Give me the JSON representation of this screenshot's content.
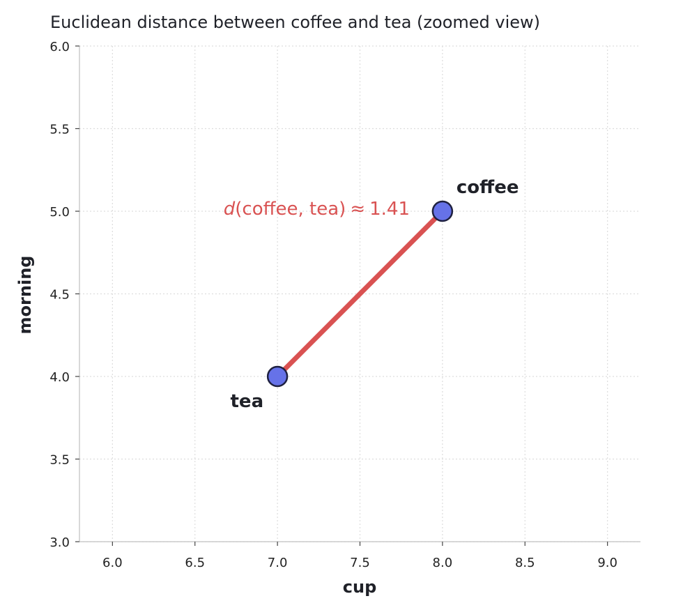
{
  "chart_data": {
    "type": "scatter",
    "title": "Euclidean distance between coffee and tea  (zoomed view)",
    "xlabel": "cup",
    "ylabel": "morning",
    "xlim": [
      5.8,
      9.2
    ],
    "ylim": [
      3.0,
      6.0
    ],
    "xticks": [
      6.0,
      6.5,
      7.0,
      7.5,
      8.0,
      8.5,
      9.0
    ],
    "xtick_labels": [
      "6.0",
      "6.5",
      "7.0",
      "7.5",
      "8.0",
      "8.5",
      "9.0"
    ],
    "yticks": [
      3.0,
      3.5,
      4.0,
      4.5,
      5.0,
      5.5,
      6.0
    ],
    "ytick_labels": [
      "3.0",
      "3.5",
      "4.0",
      "4.5",
      "5.0",
      "5.5",
      "6.0"
    ],
    "grid": true,
    "points": [
      {
        "label": "coffee",
        "x": 8.0,
        "y": 5.0
      },
      {
        "label": "tea",
        "x": 7.0,
        "y": 4.0
      }
    ],
    "segment": {
      "from": "tea",
      "to": "coffee"
    },
    "annotation": {
      "symbol": "d",
      "args": "(coffee, tea)",
      "relation": "≈",
      "value": "1.41"
    },
    "colors": {
      "point_fill": "#6672e8",
      "point_edge": "#1f2140",
      "line": "#d95252",
      "grid": "#dddddd",
      "spine": "#cccccc",
      "text": "#1f2128"
    }
  }
}
